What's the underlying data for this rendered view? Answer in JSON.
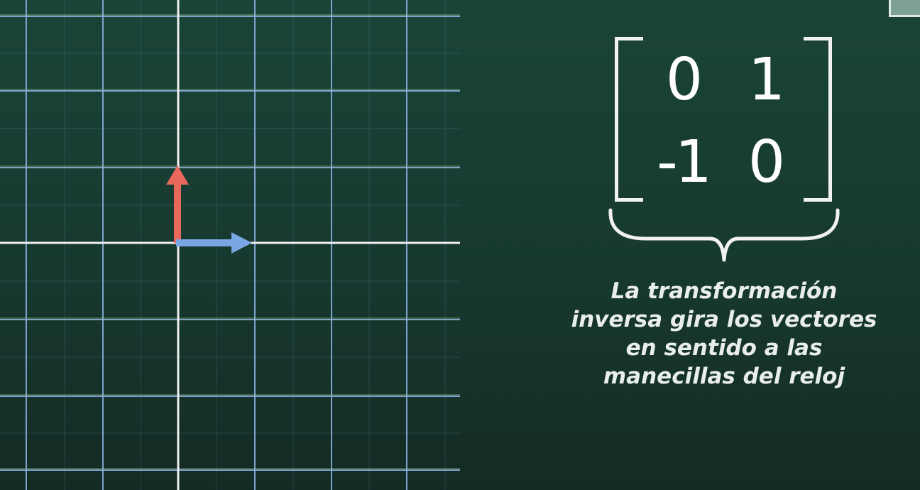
{
  "matrix": {
    "row1": [
      "0",
      "1"
    ],
    "row2": [
      "-1",
      "0"
    ]
  },
  "caption": {
    "lines": [
      "La transformación",
      "inversa gira los vectores",
      "en sentido a las",
      "manecillas del reloj"
    ]
  },
  "colors": {
    "background": "#173c32",
    "grid_blue": "#8aaee0",
    "grid_green": "#9fc98a",
    "axis": "#f0f0f0",
    "vector_i": "#7aa6e6",
    "vector_j": "#e8685c",
    "text": "#ffffff"
  },
  "vectors": [
    {
      "name": "i-hat",
      "x": 1,
      "y": 0
    },
    {
      "name": "j-hat",
      "x": 0,
      "y": 1
    }
  ]
}
